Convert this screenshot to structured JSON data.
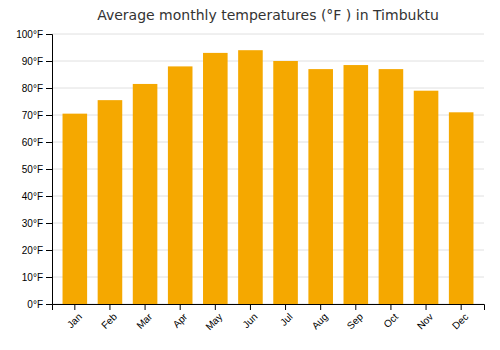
{
  "chart_data": {
    "type": "bar",
    "title": "Average monthly temperatures (°F ) in Timbuktu",
    "categories": [
      "Jan",
      "Feb",
      "Mar",
      "Apr",
      "May",
      "Jun",
      "Jul",
      "Aug",
      "Sep",
      "Oct",
      "Nov",
      "Dec"
    ],
    "values": [
      70.5,
      75.5,
      81.5,
      88,
      93,
      94,
      90,
      87,
      88.5,
      87,
      79,
      71
    ],
    "color": "#F5A800",
    "ylim": [
      0,
      100
    ],
    "yticks": [
      {
        "value": 0,
        "label": "0°F"
      },
      {
        "value": 10,
        "label": "10°F"
      },
      {
        "value": 20,
        "label": "20°F"
      },
      {
        "value": 30,
        "label": "30°F"
      },
      {
        "value": 40,
        "label": "40°F"
      },
      {
        "value": 50,
        "label": "50°F"
      },
      {
        "value": 60,
        "label": "60°F"
      },
      {
        "value": 70,
        "label": "70°F"
      },
      {
        "value": 80,
        "label": "80°F"
      },
      {
        "value": 90,
        "label": "90°F"
      },
      {
        "value": 100,
        "label": "100°F"
      }
    ],
    "grid": true
  }
}
